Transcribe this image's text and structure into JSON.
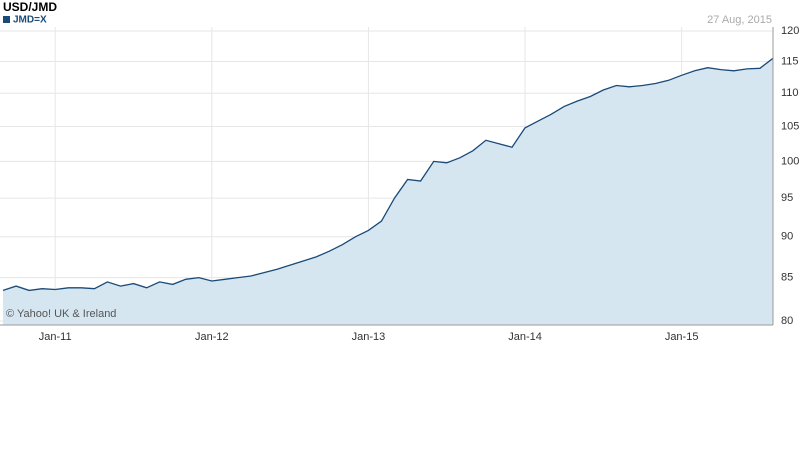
{
  "chart_data": {
    "type": "area",
    "title": "USD/JMD",
    "date_label": "27 Aug, 2015",
    "credit": "© Yahoo! UK & Ireland",
    "log_scale": true,
    "grid": true,
    "x": [
      "2010-09",
      "2010-10",
      "2010-11",
      "2010-12",
      "2011-01",
      "2011-02",
      "2011-03",
      "2011-04",
      "2011-05",
      "2011-06",
      "2011-07",
      "2011-08",
      "2011-09",
      "2011-10",
      "2011-11",
      "2011-12",
      "2012-01",
      "2012-02",
      "2012-03",
      "2012-04",
      "2012-05",
      "2012-06",
      "2012-07",
      "2012-08",
      "2012-09",
      "2012-10",
      "2012-11",
      "2012-12",
      "2013-01",
      "2013-02",
      "2013-03",
      "2013-04",
      "2013-05",
      "2013-06",
      "2013-07",
      "2013-08",
      "2013-09",
      "2013-10",
      "2013-11",
      "2013-12",
      "2014-01",
      "2014-02",
      "2014-03",
      "2014-04",
      "2014-05",
      "2014-06",
      "2014-07",
      "2014-08",
      "2014-09",
      "2014-10",
      "2014-11",
      "2014-12",
      "2015-01",
      "2015-02",
      "2015-03",
      "2015-04",
      "2015-05",
      "2015-06",
      "2015-07",
      "2015-08"
    ],
    "series": [
      {
        "name": "JMD=X",
        "color": "#1a4a78",
        "fill": "#d6e6f1",
        "values": [
          83.5,
          84.0,
          83.5,
          83.7,
          83.6,
          83.8,
          83.8,
          83.7,
          84.5,
          84.0,
          84.3,
          83.8,
          84.5,
          84.2,
          84.8,
          85.0,
          84.6,
          84.8,
          85.0,
          85.2,
          85.6,
          86.0,
          86.5,
          87.0,
          87.5,
          88.2,
          89.0,
          90.0,
          90.8,
          92.0,
          95.0,
          97.5,
          97.3,
          100.0,
          99.8,
          100.5,
          101.5,
          103.0,
          102.5,
          102.0,
          104.8,
          105.8,
          106.8,
          108.0,
          108.8,
          109.5,
          110.5,
          111.2,
          111.0,
          111.2,
          111.5,
          112.0,
          112.8,
          113.5,
          114.0,
          113.7,
          113.5,
          113.8,
          113.9,
          115.5
        ]
      }
    ],
    "xlim": [
      "2010-09",
      "2015-08"
    ],
    "xticks": [
      {
        "value": "2011-01",
        "label": "Jan-11"
      },
      {
        "value": "2012-01",
        "label": "Jan-12"
      },
      {
        "value": "2013-01",
        "label": "Jan-13"
      },
      {
        "value": "2014-01",
        "label": "Jan-14"
      },
      {
        "value": "2015-01",
        "label": "Jan-15"
      }
    ],
    "ylim": [
      80,
      120
    ],
    "yticks": [
      80,
      85,
      90,
      95,
      100,
      105,
      110,
      115,
      120
    ]
  }
}
